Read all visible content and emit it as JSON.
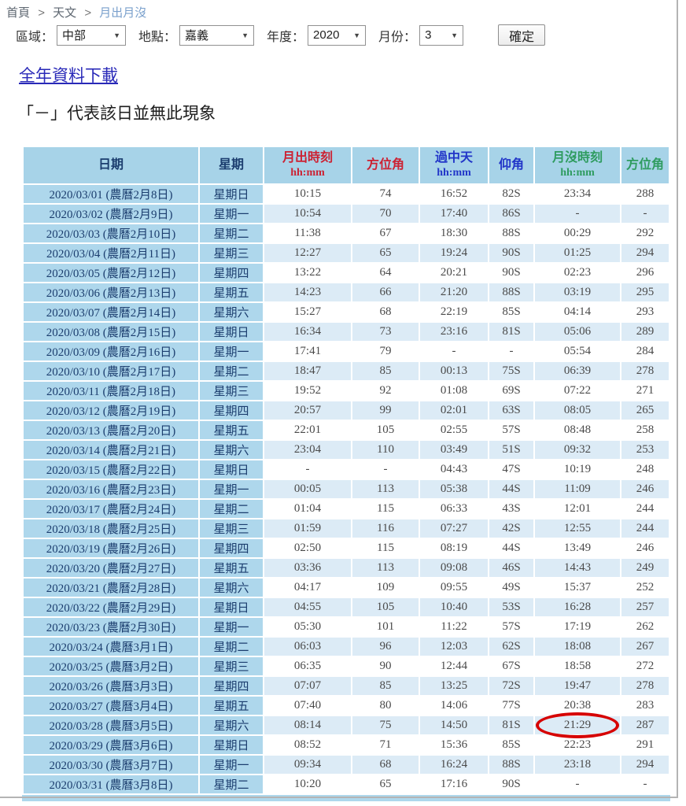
{
  "breadcrumb": {
    "items": [
      "首頁",
      "天文",
      "月出月沒"
    ],
    "separator": ">"
  },
  "filters": {
    "region_label": "區域：",
    "region_value": "中部",
    "location_label": "地點：",
    "location_value": "嘉義",
    "year_label": "年度：",
    "year_value": "2020",
    "month_label": "月份：",
    "month_value": "3",
    "submit_label": "確定",
    "dropdown_arrow": "▼"
  },
  "download_link_label": "全年資料下載",
  "note_text": "「－」代表該日並無此現象",
  "table": {
    "headers": [
      {
        "label": "日期",
        "sub": "",
        "color": "navy"
      },
      {
        "label": "星期",
        "sub": "",
        "color": "navy"
      },
      {
        "label": "月出時刻",
        "sub": "hh:mm",
        "color": "red"
      },
      {
        "label": "方位角",
        "sub": "",
        "color": "red"
      },
      {
        "label": "過中天",
        "sub": "hh:mm",
        "color": "blue"
      },
      {
        "label": "仰角",
        "sub": "",
        "color": "blue"
      },
      {
        "label": "月沒時刻",
        "sub": "hh:mm",
        "color": "green"
      },
      {
        "label": "方位角",
        "sub": "",
        "color": "green"
      }
    ],
    "rows": [
      [
        "2020/03/01 (農曆2月8日)",
        "星期日",
        "10:15",
        "74",
        "16:52",
        "82S",
        "23:34",
        "288"
      ],
      [
        "2020/03/02 (農曆2月9日)",
        "星期一",
        "10:54",
        "70",
        "17:40",
        "86S",
        "-",
        "-"
      ],
      [
        "2020/03/03 (農曆2月10日)",
        "星期二",
        "11:38",
        "67",
        "18:30",
        "88S",
        "00:29",
        "292"
      ],
      [
        "2020/03/04 (農曆2月11日)",
        "星期三",
        "12:27",
        "65",
        "19:24",
        "90S",
        "01:25",
        "294"
      ],
      [
        "2020/03/05 (農曆2月12日)",
        "星期四",
        "13:22",
        "64",
        "20:21",
        "90S",
        "02:23",
        "296"
      ],
      [
        "2020/03/06 (農曆2月13日)",
        "星期五",
        "14:23",
        "66",
        "21:20",
        "88S",
        "03:19",
        "295"
      ],
      [
        "2020/03/07 (農曆2月14日)",
        "星期六",
        "15:27",
        "68",
        "22:19",
        "85S",
        "04:14",
        "293"
      ],
      [
        "2020/03/08 (農曆2月15日)",
        "星期日",
        "16:34",
        "73",
        "23:16",
        "81S",
        "05:06",
        "289"
      ],
      [
        "2020/03/09 (農曆2月16日)",
        "星期一",
        "17:41",
        "79",
        "-",
        "-",
        "05:54",
        "284"
      ],
      [
        "2020/03/10 (農曆2月17日)",
        "星期二",
        "18:47",
        "85",
        "00:13",
        "75S",
        "06:39",
        "278"
      ],
      [
        "2020/03/11 (農曆2月18日)",
        "星期三",
        "19:52",
        "92",
        "01:08",
        "69S",
        "07:22",
        "271"
      ],
      [
        "2020/03/12 (農曆2月19日)",
        "星期四",
        "20:57",
        "99",
        "02:01",
        "63S",
        "08:05",
        "265"
      ],
      [
        "2020/03/13 (農曆2月20日)",
        "星期五",
        "22:01",
        "105",
        "02:55",
        "57S",
        "08:48",
        "258"
      ],
      [
        "2020/03/14 (農曆2月21日)",
        "星期六",
        "23:04",
        "110",
        "03:49",
        "51S",
        "09:32",
        "253"
      ],
      [
        "2020/03/15 (農曆2月22日)",
        "星期日",
        "-",
        "-",
        "04:43",
        "47S",
        "10:19",
        "248"
      ],
      [
        "2020/03/16 (農曆2月23日)",
        "星期一",
        "00:05",
        "113",
        "05:38",
        "44S",
        "11:09",
        "246"
      ],
      [
        "2020/03/17 (農曆2月24日)",
        "星期二",
        "01:04",
        "115",
        "06:33",
        "43S",
        "12:01",
        "244"
      ],
      [
        "2020/03/18 (農曆2月25日)",
        "星期三",
        "01:59",
        "116",
        "07:27",
        "42S",
        "12:55",
        "244"
      ],
      [
        "2020/03/19 (農曆2月26日)",
        "星期四",
        "02:50",
        "115",
        "08:19",
        "44S",
        "13:49",
        "246"
      ],
      [
        "2020/03/20 (農曆2月27日)",
        "星期五",
        "03:36",
        "113",
        "09:08",
        "46S",
        "14:43",
        "249"
      ],
      [
        "2020/03/21 (農曆2月28日)",
        "星期六",
        "04:17",
        "109",
        "09:55",
        "49S",
        "15:37",
        "252"
      ],
      [
        "2020/03/22 (農曆2月29日)",
        "星期日",
        "04:55",
        "105",
        "10:40",
        "53S",
        "16:28",
        "257"
      ],
      [
        "2020/03/23 (農曆2月30日)",
        "星期一",
        "05:30",
        "101",
        "11:22",
        "57S",
        "17:19",
        "262"
      ],
      [
        "2020/03/24 (農曆3月1日)",
        "星期二",
        "06:03",
        "96",
        "12:03",
        "62S",
        "18:08",
        "267"
      ],
      [
        "2020/03/25 (農曆3月2日)",
        "星期三",
        "06:35",
        "90",
        "12:44",
        "67S",
        "18:58",
        "272"
      ],
      [
        "2020/03/26 (農曆3月3日)",
        "星期四",
        "07:07",
        "85",
        "13:25",
        "72S",
        "19:47",
        "278"
      ],
      [
        "2020/03/27 (農曆3月4日)",
        "星期五",
        "07:40",
        "80",
        "14:06",
        "77S",
        "20:38",
        "283"
      ],
      [
        "2020/03/28 (農曆3月5日)",
        "星期六",
        "08:14",
        "75",
        "14:50",
        "81S",
        "21:29",
        "287"
      ],
      [
        "2020/03/29 (農曆3月6日)",
        "星期日",
        "08:52",
        "71",
        "15:36",
        "85S",
        "22:23",
        "291"
      ],
      [
        "2020/03/30 (農曆3月7日)",
        "星期一",
        "09:34",
        "68",
        "16:24",
        "88S",
        "23:18",
        "294"
      ],
      [
        "2020/03/31 (農曆3月8日)",
        "星期二",
        "10:20",
        "65",
        "17:16",
        "90S",
        "-",
        "-"
      ]
    ],
    "highlight": {
      "row_index": 27,
      "col_index": 6
    }
  },
  "colors": {
    "header_bg": "#a7d3e8",
    "label_col_bg": "#aed7ec",
    "stripe_bg": "#dcebf6",
    "navy": "#1b3d6e",
    "red": "#cc2233",
    "blue": "#2135c8",
    "green": "#2f9c60",
    "link_blue": "#2929b8",
    "highlight_circle": "#d60000"
  }
}
